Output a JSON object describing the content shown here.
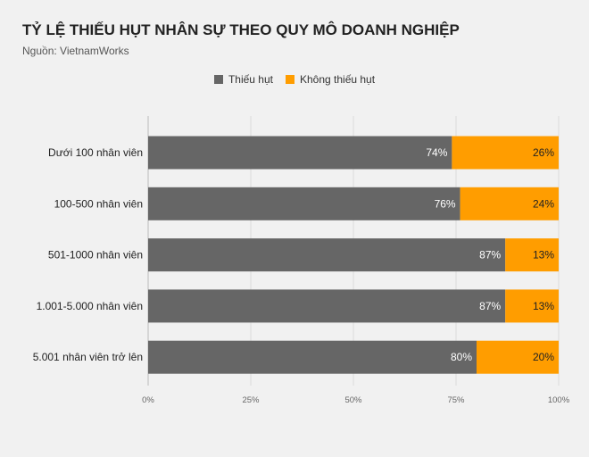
{
  "chart_data": {
    "type": "bar",
    "orientation": "horizontal",
    "stacked": true,
    "title": "TỶ LỆ THIẾU HỤT NHÂN SỰ THEO QUY MÔ DOANH NGHIỆP",
    "subtitle": "Nguồn: VietnamWorks",
    "categories": [
      "Dưới 100 nhân viên",
      "100-500 nhân viên",
      "501-1000 nhân viên",
      "1.001-5.000 nhân viên",
      "5.001 nhân viên trở lên"
    ],
    "series": [
      {
        "name": "Thiếu hụt",
        "color": "#666666",
        "label_color": "#ffffff",
        "values": [
          74,
          76,
          87,
          87,
          80
        ],
        "labels": [
          "74%",
          "76%",
          "87%",
          "87%",
          "80%"
        ]
      },
      {
        "name": "Không thiếu hụt",
        "color": "#ff9d00",
        "label_color": "#222222",
        "values": [
          26,
          24,
          13,
          13,
          20
        ],
        "labels": [
          "26%",
          "24%",
          "13%",
          "13%",
          "20%"
        ]
      }
    ],
    "xlim": [
      0,
      100
    ],
    "xticks": [
      0,
      25,
      50,
      75,
      100
    ],
    "xtick_labels": [
      "0%",
      "25%",
      "50%",
      "75%",
      "100%"
    ],
    "grid": true,
    "legend_position": "top-center"
  }
}
